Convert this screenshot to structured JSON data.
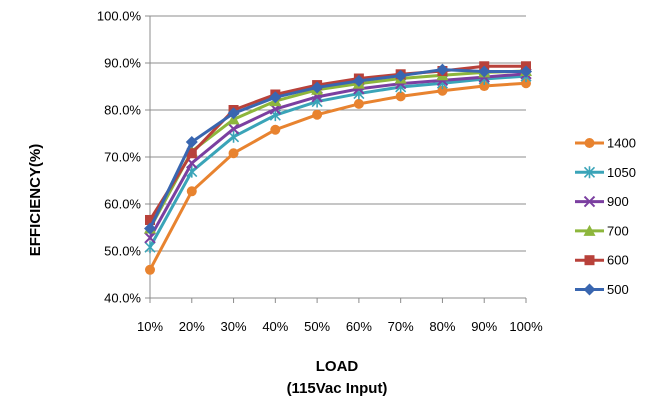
{
  "chart_data": {
    "type": "line",
    "title": "",
    "xlabel": "LOAD",
    "xlabel_sub": "(115Vac Input)",
    "ylabel": "EFFICIENCY(%)",
    "categories": [
      "10%",
      "20%",
      "30%",
      "40%",
      "50%",
      "60%",
      "70%",
      "80%",
      "90%",
      "100%"
    ],
    "ylim": [
      40,
      100
    ],
    "yticks": [
      40,
      50,
      60,
      70,
      80,
      90,
      100
    ],
    "ytick_labels": [
      "40.0%",
      "50.0%",
      "60.0%",
      "70.0%",
      "80.0%",
      "90.0%",
      "100.0%"
    ],
    "grid": "horizontal",
    "legend_position": "right",
    "series": [
      {
        "name": "1400",
        "color": "#E8832F",
        "marker": "circle",
        "values": [
          46.0,
          62.7,
          70.8,
          75.8,
          79.0,
          81.3,
          82.9,
          84.1,
          85.1,
          85.7
        ]
      },
      {
        "name": "1050",
        "color": "#3AA4B8",
        "marker": "asterisk",
        "values": [
          50.8,
          66.9,
          74.3,
          78.9,
          81.8,
          83.5,
          84.9,
          85.7,
          86.6,
          87.2
        ]
      },
      {
        "name": "900",
        "color": "#7B3FA0",
        "marker": "x",
        "values": [
          52.8,
          68.7,
          76.0,
          80.2,
          82.8,
          84.5,
          85.6,
          86.3,
          87.0,
          87.7
        ]
      },
      {
        "name": "700",
        "color": "#8DB63C",
        "marker": "triangle",
        "values": [
          54.8,
          71.2,
          78.0,
          81.9,
          84.3,
          85.6,
          86.7,
          87.4,
          88.0,
          88.3
        ]
      },
      {
        "name": "600",
        "color": "#B8413A",
        "marker": "square",
        "values": [
          56.6,
          70.8,
          80.0,
          83.3,
          85.3,
          86.7,
          87.6,
          88.3,
          89.3,
          89.3
        ]
      },
      {
        "name": "500",
        "color": "#3966B0",
        "marker": "diamond",
        "values": [
          54.8,
          73.2,
          79.3,
          82.7,
          84.8,
          86.2,
          87.3,
          88.6,
          88.2,
          88.2
        ]
      }
    ]
  }
}
